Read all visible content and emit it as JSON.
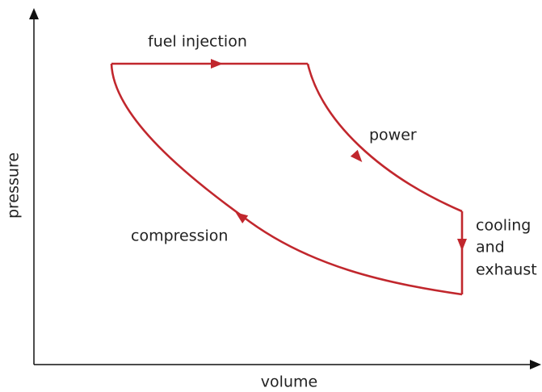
{
  "axes": {
    "y_label": "pressure",
    "x_label": "volume"
  },
  "processes": {
    "fuel_injection": "fuel injection",
    "power": "power",
    "cooling_exhaust": [
      "cooling",
      "and",
      "exhaust"
    ],
    "compression": "compression"
  }
}
